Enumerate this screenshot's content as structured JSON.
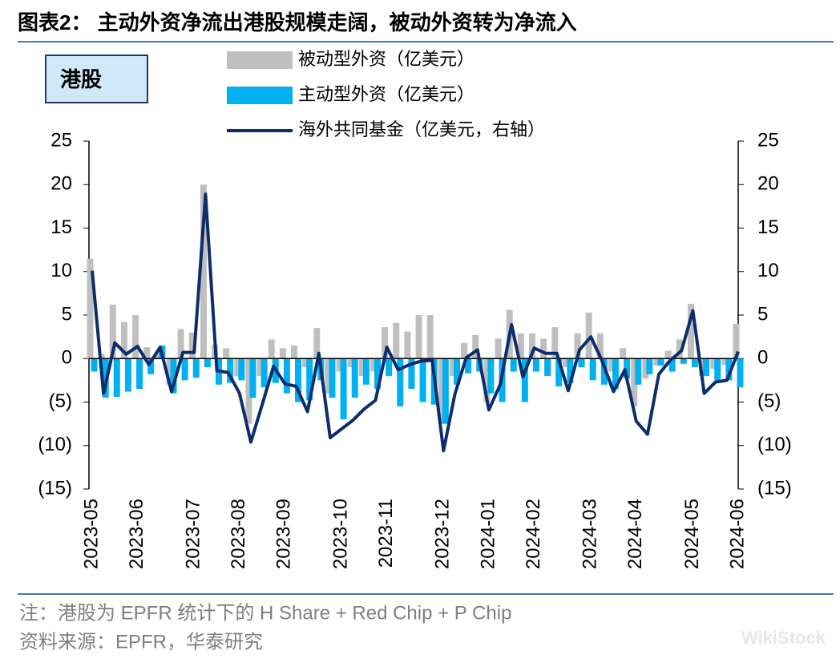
{
  "chart_data": {
    "type": "bar_line",
    "title": "图表2： 主动外资净流出港股规模走阔，被动外资转为净流入",
    "region_label": "港股",
    "note": "注：港股为 EPFR 统计下的 H Share + Red Chip + P Chip",
    "source": "资料来源：EPFR，华泰研究",
    "watermark": "WikiStock",
    "categories": [
      "2023-05",
      null,
      null,
      null,
      "2023-06",
      null,
      null,
      null,
      null,
      "2023-07",
      null,
      null,
      null,
      "2023-08",
      null,
      null,
      null,
      "2023-09",
      null,
      null,
      null,
      null,
      "2023-10",
      null,
      null,
      null,
      "2023-11",
      null,
      null,
      null,
      null,
      "2023-12",
      null,
      null,
      null,
      "2024-01",
      null,
      null,
      null,
      "2024-02",
      null,
      null,
      null,
      null,
      "2024-03",
      null,
      null,
      null,
      "2024-04",
      null,
      null,
      null,
      null,
      "2024-05",
      null,
      null,
      null,
      "2024-06"
    ],
    "series": [
      {
        "name": "被动型外资（亿美元）",
        "type": "bar",
        "color": "#bfbfbf",
        "values": [
          11.5,
          0.5,
          6.2,
          4.2,
          5.0,
          1.3,
          0.8,
          -3.0,
          3.4,
          3.0,
          20,
          1.6,
          1.2,
          -2.0,
          -7.5,
          -2.0,
          2.2,
          1.2,
          1.5,
          -1.0,
          3.5,
          -4.0,
          -1.5,
          -1.0,
          -2.0,
          -1.5,
          3.6,
          4.1,
          3.1,
          5.0,
          5.0,
          -7.5,
          -2.0,
          1.8,
          2.7,
          -5.0,
          2.3,
          5.6,
          2.9,
          2.9,
          2.3,
          3.6,
          -1.0,
          2.9,
          5.3,
          2.9,
          -1.5,
          1.2,
          -5.5,
          -2.3,
          -0.8,
          0.9,
          2.2,
          6.3,
          -2.0,
          -1.2,
          -0.7,
          4.0
        ]
      },
      {
        "name": "主动型外资（亿美元）",
        "type": "bar",
        "color": "#00b0f0",
        "values": [
          -1.5,
          -4.5,
          -4.4,
          -3.8,
          -3.5,
          -1.8,
          1.5,
          -4.0,
          -2.5,
          -2.2,
          -1.0,
          -3.0,
          -2.8,
          -2.5,
          -4.5,
          -3.3,
          -2.8,
          -4.0,
          -5.0,
          -4.8,
          -2.5,
          -4.5,
          -7.0,
          -4.5,
          -3.0,
          -3.5,
          -2.0,
          -5.5,
          -3.5,
          -5.0,
          -5.3,
          -7.5,
          -3.0,
          -1.7,
          -1.5,
          -4.0,
          -5.0,
          -1.5,
          -5.0,
          -1.5,
          -2.0,
          -3.2,
          -2.8,
          -1.0,
          -2.5,
          -3.0,
          -3.5,
          -2.3,
          -3.0,
          -1.8,
          -0.8,
          -1.5,
          -0.6,
          -1.0,
          -2.0,
          -2.5,
          -2.5,
          -3.3
        ]
      },
      {
        "name": "海外共同基金（亿美元，右轴）",
        "type": "line",
        "axis": "y2",
        "color": "#0c2d6b",
        "values": [
          10.1,
          -4.0,
          1.8,
          0.5,
          1.4,
          -0.7,
          1.3,
          -3.8,
          0.7,
          0.7,
          18.9,
          -1.4,
          -1.6,
          -4.0,
          -9.6,
          -5.3,
          -0.9,
          -2.9,
          -3.2,
          -6.1,
          0.6,
          -9.1,
          -8.1,
          -7.1,
          -5.8,
          -4.8,
          1.3,
          -1.3,
          -0.7,
          -0.3,
          -0.2,
          -10.6,
          -4.1,
          0.1,
          1.0,
          -5.9,
          -3.0,
          3.9,
          -2.1,
          1.2,
          0.6,
          0.6,
          -3.7,
          1.0,
          2.5,
          -0.3,
          -3.8,
          -1.3,
          -7.2,
          -8.7,
          -1.8,
          -0.2,
          0.9,
          5.5,
          -4.0,
          -2.7,
          -2.5,
          0.8
        ]
      }
    ],
    "ylim": [
      -15,
      25
    ],
    "yticks": [
      {
        "value": -15,
        "label": "(15)"
      },
      {
        "value": -10,
        "label": "(10)"
      },
      {
        "value": -5,
        "label": "(5)"
      },
      0,
      5,
      10,
      15,
      20,
      25
    ],
    "y2lim": [
      -15,
      25
    ],
    "y2ticks": [
      {
        "value": -15,
        "label": "(15)"
      },
      {
        "value": -10,
        "label": "(10)"
      },
      {
        "value": -5,
        "label": "(5)"
      },
      0,
      5,
      10,
      15,
      20,
      25
    ]
  }
}
